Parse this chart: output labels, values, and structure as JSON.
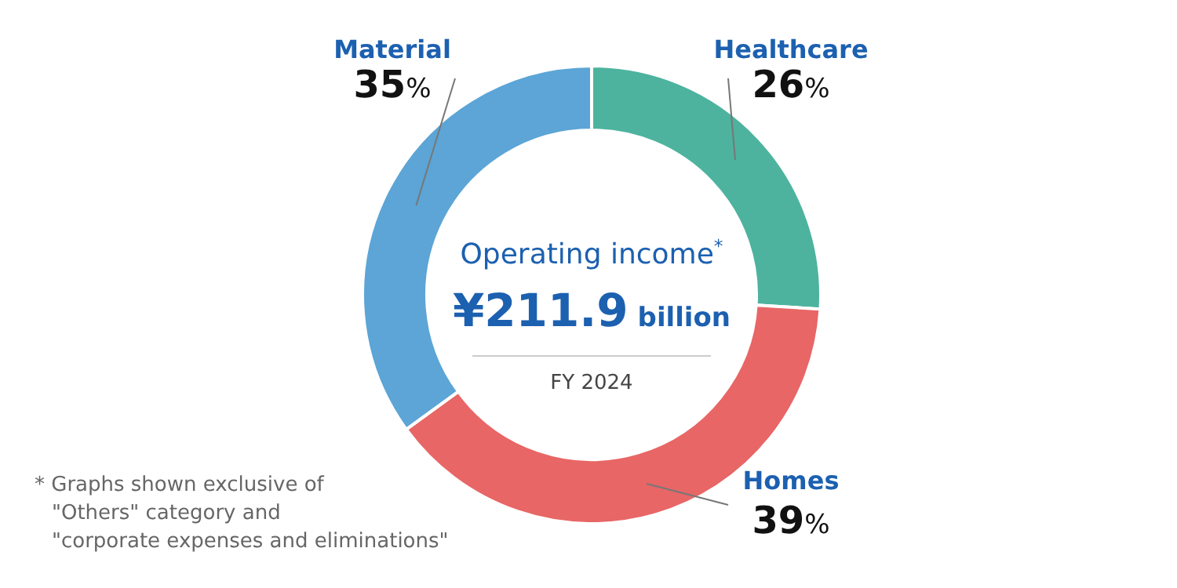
{
  "chart_data": {
    "type": "donut",
    "title": "Operating income$^{*}$",
    "subtitle": "¥211.9 billion",
    "categories": [
      "Healthcare",
      "Homes",
      "Material"
    ],
    "values": [
      26,
      39,
      35
    ],
    "colors": [
      "#4db39e",
      "#e86666",
      "#5ca5d6"
    ],
    "value_labels": [
      "26%",
      "39%",
      "35%"
    ],
    "annotations": [
      "FY 2024",
      "* Graphs shown exclusive of\n\"Others\" category and\n\"corporate expenses and eliminations\""
    ]
  }
}
